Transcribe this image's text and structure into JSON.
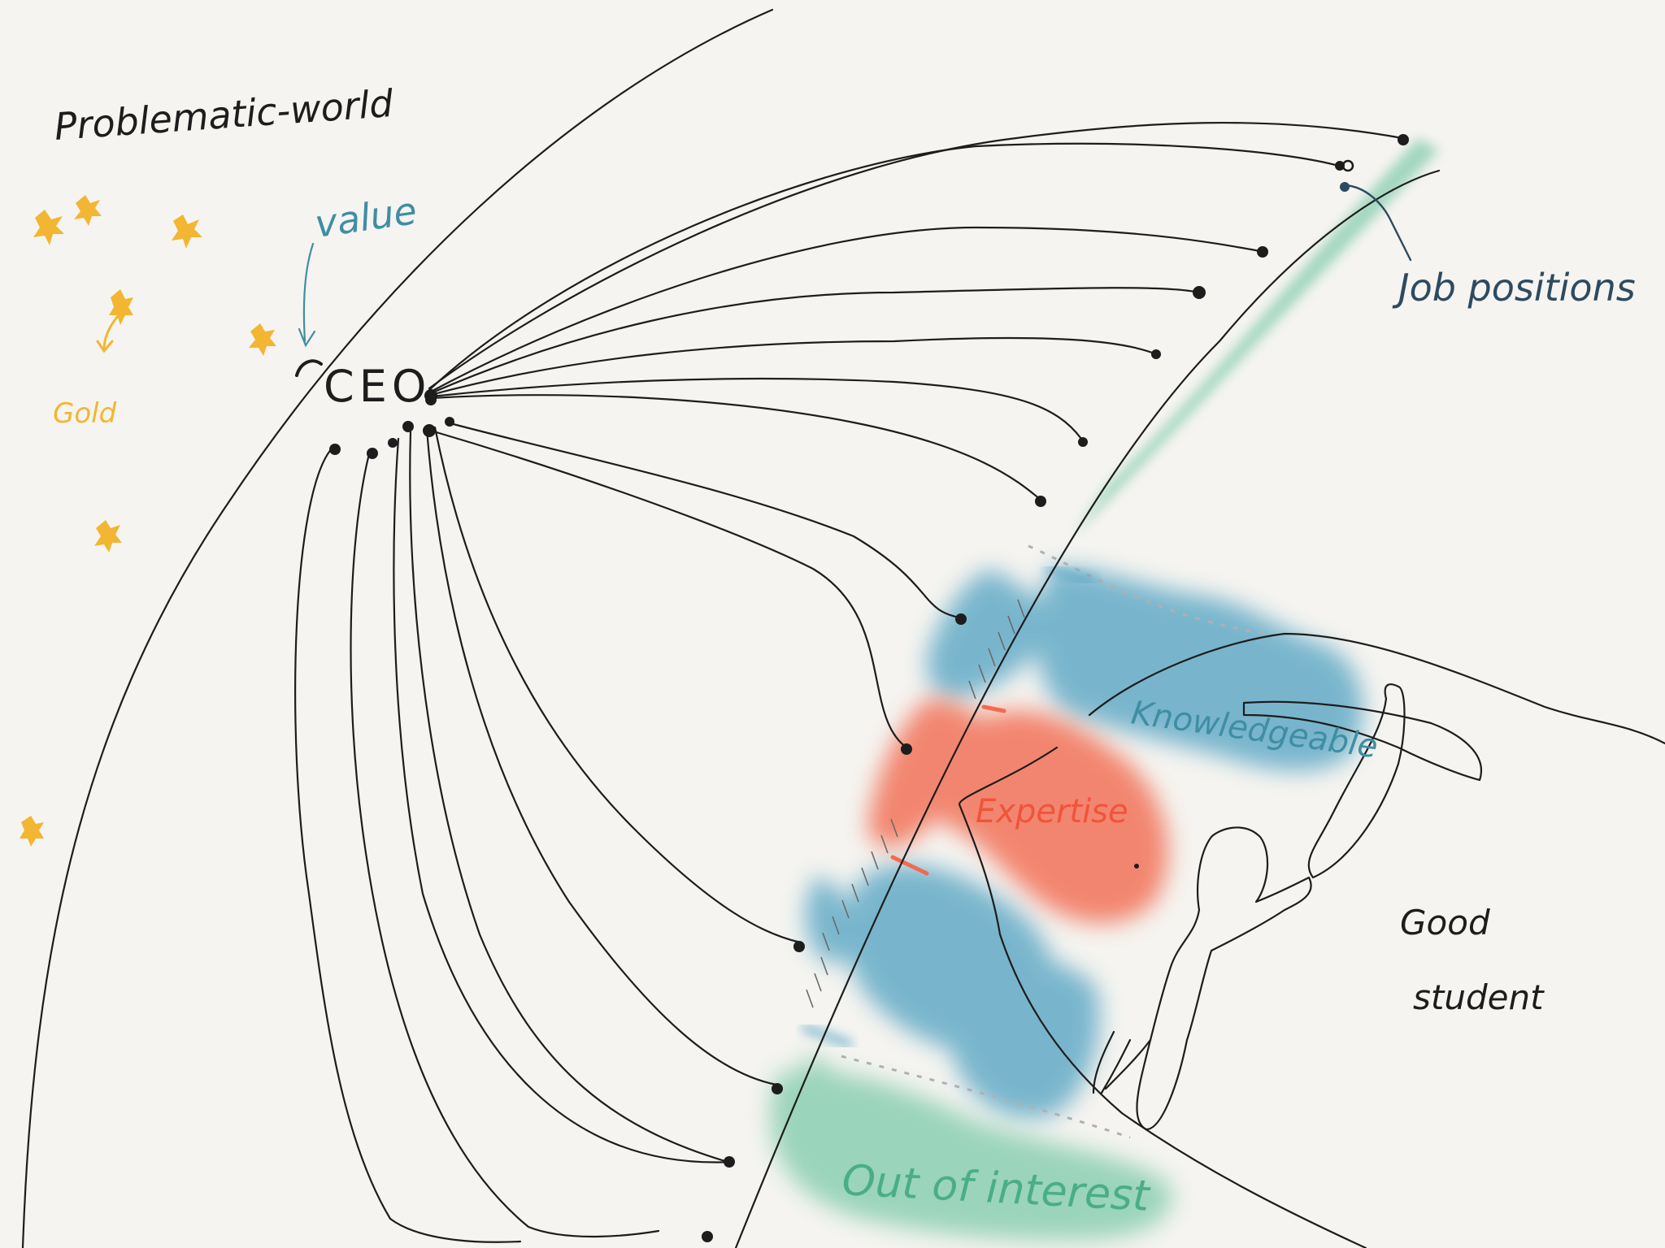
{
  "labels": {
    "world": "Problematic-world",
    "value": "value",
    "gold": "Gold",
    "ceo": "CEO",
    "job_positions": "Job positions",
    "knowledgeable": "Knowledgeable",
    "expertise": "Expertise",
    "good": "Good",
    "student": "student",
    "out_of_interest": "Out of interest"
  },
  "colors": {
    "ink": "#1d1d1d",
    "gold": "#f2b632",
    "value_teal": "#3f8ea3",
    "job_navy": "#2d4a60",
    "knowledge_blue": "#4a9ec0",
    "expertise_red": "#f26a4f",
    "interest_green": "#5fbf98"
  },
  "icons": [
    "gold-star-icon",
    "pickaxe-icon",
    "student-figure-icon"
  ]
}
